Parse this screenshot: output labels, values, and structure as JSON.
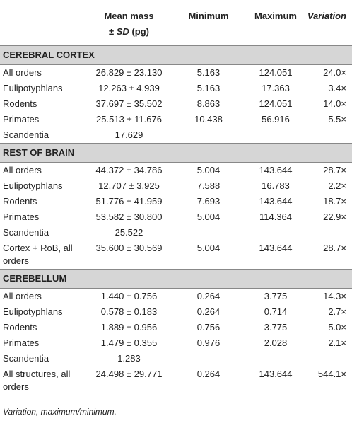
{
  "header": {
    "mean_mass": {
      "line1": "Mean mass",
      "pm": "±",
      "sd": "SD",
      "unit": "(pg)"
    },
    "minimum": "Minimum",
    "maximum": "Maximum",
    "variation": "Variation"
  },
  "sections": [
    {
      "title": "CEREBRAL CORTEX",
      "rows": [
        {
          "label": "All orders",
          "mean": "26.829 ± 23.130",
          "min": "5.163",
          "max": "124.051",
          "var": "24.0×"
        },
        {
          "label": "Eulipotyphlans",
          "mean": "12.263 ± 4.939",
          "min": "5.163",
          "max": "17.363",
          "var": "3.4×"
        },
        {
          "label": "Rodents",
          "mean": "37.697 ± 35.502",
          "min": "8.863",
          "max": "124.051",
          "var": "14.0×"
        },
        {
          "label": "Primates",
          "mean": "25.513 ± 11.676",
          "min": "10.438",
          "max": "56.916",
          "var": "5.5×"
        },
        {
          "label": "Scandentia",
          "mean": "17.629"
        }
      ]
    },
    {
      "title": "REST OF BRAIN",
      "rows": [
        {
          "label": "All orders",
          "mean": "44.372 ± 34.786",
          "min": "5.004",
          "max": "143.644",
          "var": "28.7×"
        },
        {
          "label": "Eulipotyphlans",
          "mean": "12.707 ± 3.925",
          "min": "7.588",
          "max": "16.783",
          "var": "2.2×"
        },
        {
          "label": "Rodents",
          "mean": "51.776 ± 41.959",
          "min": "7.693",
          "max": "143.644",
          "var": "18.7×"
        },
        {
          "label": "Primates",
          "mean": "53.582 ± 30.800",
          "min": "5.004",
          "max": "114.364",
          "var": "22.9×"
        },
        {
          "label": "Scandentia",
          "mean": "25.522"
        },
        {
          "label": "Cortex + RoB, all orders",
          "mean": "35.600 ± 30.569",
          "min": "5.004",
          "max": "143.644",
          "var": "28.7×"
        }
      ]
    },
    {
      "title": "CEREBELLUM",
      "rows": [
        {
          "label": "All orders",
          "mean": "1.440 ± 0.756",
          "min": "0.264",
          "max": "3.775",
          "var": "14.3×"
        },
        {
          "label": "Eulipotyphlans",
          "mean": "0.578 ± 0.183",
          "min": "0.264",
          "max": "0.714",
          "var": "2.7×"
        },
        {
          "label": "Rodents",
          "mean": "1.889 ± 0.956",
          "min": "0.756",
          "max": "3.775",
          "var": "5.0×"
        },
        {
          "label": "Primates",
          "mean": "1.479 ± 0.355",
          "min": "0.976",
          "max": "2.028",
          "var": "2.1×"
        },
        {
          "label": "Scandentia",
          "mean": "1.283"
        },
        {
          "label": "All structures, all orders",
          "mean": "24.498 ± 29.771",
          "min": "0.264",
          "max": "143.644",
          "var": "544.1×"
        }
      ]
    }
  ],
  "footnote": "Variation, maximum/minimum."
}
